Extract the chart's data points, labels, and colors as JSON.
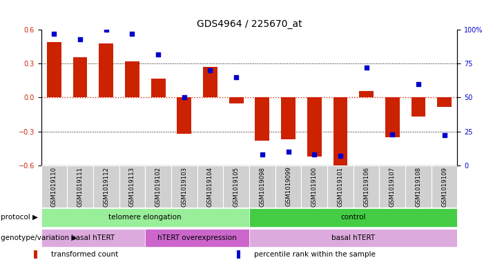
{
  "title": "GDS4964 / 225670_at",
  "samples": [
    "GSM1019110",
    "GSM1019111",
    "GSM1019112",
    "GSM1019113",
    "GSM1019102",
    "GSM1019103",
    "GSM1019104",
    "GSM1019105",
    "GSM1019098",
    "GSM1019099",
    "GSM1019100",
    "GSM1019101",
    "GSM1019106",
    "GSM1019107",
    "GSM1019108",
    "GSM1019109"
  ],
  "bar_values": [
    0.49,
    0.36,
    0.48,
    0.32,
    0.17,
    -0.32,
    0.27,
    -0.05,
    -0.38,
    -0.37,
    -0.52,
    -0.6,
    0.06,
    -0.35,
    -0.17,
    -0.08
  ],
  "dot_values": [
    97,
    93,
    100,
    97,
    82,
    50,
    70,
    65,
    8,
    10,
    8,
    7,
    72,
    23,
    60,
    22
  ],
  "ylim_left": [
    -0.6,
    0.6
  ],
  "ylim_right": [
    0,
    100
  ],
  "yticks_left": [
    -0.6,
    -0.3,
    0.0,
    0.3,
    0.6
  ],
  "yticks_right": [
    0,
    25,
    50,
    75,
    100
  ],
  "ytick_labels_right": [
    "0",
    "25",
    "50",
    "75",
    "100%"
  ],
  "bar_color": "#cc2200",
  "dot_color": "#0000cc",
  "zero_line_color": "#cc2200",
  "grid_color": "#000000",
  "bg_color": "#ffffff",
  "plot_bg": "#ffffff",
  "protocol_labels": [
    {
      "text": "telomere elongation",
      "start": 0,
      "end": 7,
      "color": "#99ee99"
    },
    {
      "text": "control",
      "start": 8,
      "end": 15,
      "color": "#44cc44"
    }
  ],
  "genotype_labels": [
    {
      "text": "basal hTERT",
      "start": 0,
      "end": 3,
      "color": "#ddaadd"
    },
    {
      "text": "hTERT overexpression",
      "start": 4,
      "end": 7,
      "color": "#cc66cc"
    },
    {
      "text": "basal hTERT",
      "start": 8,
      "end": 15,
      "color": "#ddaadd"
    }
  ],
  "row_labels": [
    "protocol",
    "genotype/variation"
  ],
  "legend_items": [
    {
      "color": "#cc2200",
      "label": "transformed count"
    },
    {
      "color": "#0000cc",
      "label": "percentile rank within the sample"
    }
  ],
  "title_fontsize": 10,
  "tick_fontsize": 7,
  "label_fontsize": 8,
  "xtick_color": "#000000",
  "cell_bg": "#d0d0d0"
}
